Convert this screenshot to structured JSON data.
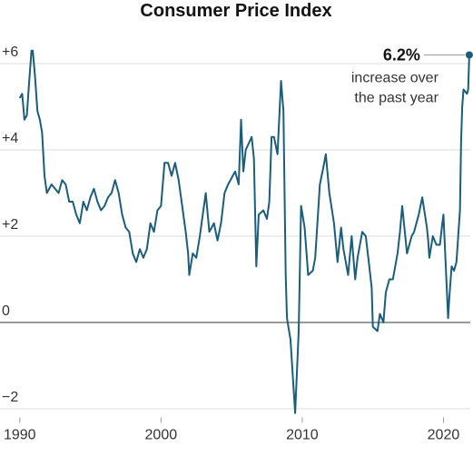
{
  "chart_data": {
    "type": "line",
    "title": "Consumer Price Index",
    "x": [
      1990.0,
      1990.17,
      1990.33,
      1990.5,
      1990.67,
      1990.83,
      1990.92,
      1991.08,
      1991.25,
      1991.42,
      1991.58,
      1991.75,
      1991.92,
      1992.25,
      1992.5,
      1992.75,
      1993.0,
      1993.25,
      1993.5,
      1993.75,
      1994.0,
      1994.25,
      1994.5,
      1994.75,
      1995.0,
      1995.25,
      1995.5,
      1995.75,
      1996.0,
      1996.25,
      1996.5,
      1996.75,
      1997.0,
      1997.25,
      1997.5,
      1997.75,
      1998.0,
      1998.25,
      1998.5,
      1998.75,
      1999.0,
      1999.25,
      1999.5,
      1999.75,
      2000.0,
      2000.25,
      2000.5,
      2000.75,
      2001.0,
      2001.25,
      2001.5,
      2001.75,
      2001.92,
      2002.0,
      2002.25,
      2002.5,
      2002.75,
      2003.0,
      2003.17,
      2003.42,
      2003.75,
      2004.0,
      2004.25,
      2004.5,
      2004.75,
      2004.92,
      2005.25,
      2005.5,
      2005.67,
      2005.83,
      2006.0,
      2006.42,
      2006.58,
      2006.75,
      2006.92,
      2007.25,
      2007.5,
      2007.67,
      2007.83,
      2008.0,
      2008.25,
      2008.5,
      2008.67,
      2008.83,
      2008.92,
      2009.17,
      2009.5,
      2009.75,
      2009.92,
      2010.17,
      2010.42,
      2010.75,
      2010.92,
      2011.25,
      2011.5,
      2011.67,
      2011.92,
      2012.25,
      2012.5,
      2012.75,
      2012.92,
      2013.25,
      2013.5,
      2013.75,
      2013.92,
      2014.25,
      2014.5,
      2014.75,
      2014.92,
      2015.0,
      2015.33,
      2015.5,
      2015.75,
      2015.92,
      2016.17,
      2016.42,
      2016.75,
      2016.92,
      2017.08,
      2017.42,
      2017.75,
      2017.92,
      2018.25,
      2018.5,
      2018.83,
      2018.92,
      2019.0,
      2019.25,
      2019.5,
      2019.75,
      2019.92,
      2020.0,
      2020.33,
      2020.42,
      2020.58,
      2020.75,
      2020.92,
      2021.17,
      2021.25,
      2021.33,
      2021.42,
      2021.67,
      2021.75,
      2021.83
    ],
    "series": [
      {
        "color": "#1b5d7a",
        "values": [
          5.2,
          5.3,
          4.7,
          4.8,
          5.6,
          6.3,
          6.3,
          5.7,
          4.9,
          4.7,
          4.4,
          3.4,
          3.0,
          3.2,
          3.1,
          3.0,
          3.3,
          3.2,
          2.8,
          2.8,
          2.5,
          2.3,
          2.8,
          2.6,
          2.9,
          3.1,
          2.8,
          2.6,
          2.7,
          2.9,
          3.0,
          3.3,
          3.0,
          2.5,
          2.2,
          2.1,
          1.6,
          1.4,
          1.7,
          1.5,
          1.7,
          2.3,
          2.1,
          2.6,
          2.7,
          3.7,
          3.7,
          3.4,
          3.7,
          3.3,
          2.7,
          2.1,
          1.6,
          1.1,
          1.6,
          1.5,
          2.0,
          2.6,
          3.0,
          2.1,
          2.3,
          1.9,
          2.3,
          3.0,
          3.2,
          3.3,
          3.5,
          3.2,
          4.7,
          3.5,
          4.0,
          4.3,
          3.8,
          1.3,
          2.5,
          2.6,
          2.4,
          2.8,
          4.3,
          4.3,
          3.9,
          5.6,
          4.9,
          1.1,
          0.1,
          -0.4,
          -2.1,
          -0.2,
          2.7,
          2.2,
          1.1,
          1.2,
          1.5,
          3.2,
          3.6,
          3.9,
          3.0,
          2.3,
          1.4,
          2.2,
          1.7,
          1.1,
          2.0,
          1.0,
          1.5,
          2.1,
          2.0,
          1.3,
          0.8,
          -0.1,
          -0.2,
          0.2,
          0.0,
          0.7,
          1.0,
          1.0,
          1.6,
          2.1,
          2.7,
          1.6,
          2.0,
          2.1,
          2.5,
          2.9,
          2.2,
          1.9,
          1.5,
          2.0,
          1.8,
          1.8,
          2.3,
          2.5,
          0.1,
          0.6,
          1.3,
          1.2,
          1.4,
          2.6,
          4.2,
          5.0,
          5.4,
          5.3,
          5.4,
          6.2
        ]
      }
    ],
    "annotation": {
      "value": 6.2,
      "label": "6.2%",
      "lines": [
        "increase over",
        "the past year"
      ]
    },
    "xlim": [
      1988.6,
      2021.9
    ],
    "xticks": [
      1990,
      2000,
      2010,
      2020
    ],
    "ylim": [
      -2.2,
      6.6
    ],
    "yticks": [
      {
        "value": 6,
        "label": "+6"
      },
      {
        "value": 4,
        "label": "+4"
      },
      {
        "value": 2,
        "label": "+2"
      },
      0,
      {
        "value": -2,
        "label": "−2"
      }
    ],
    "grid": true
  }
}
